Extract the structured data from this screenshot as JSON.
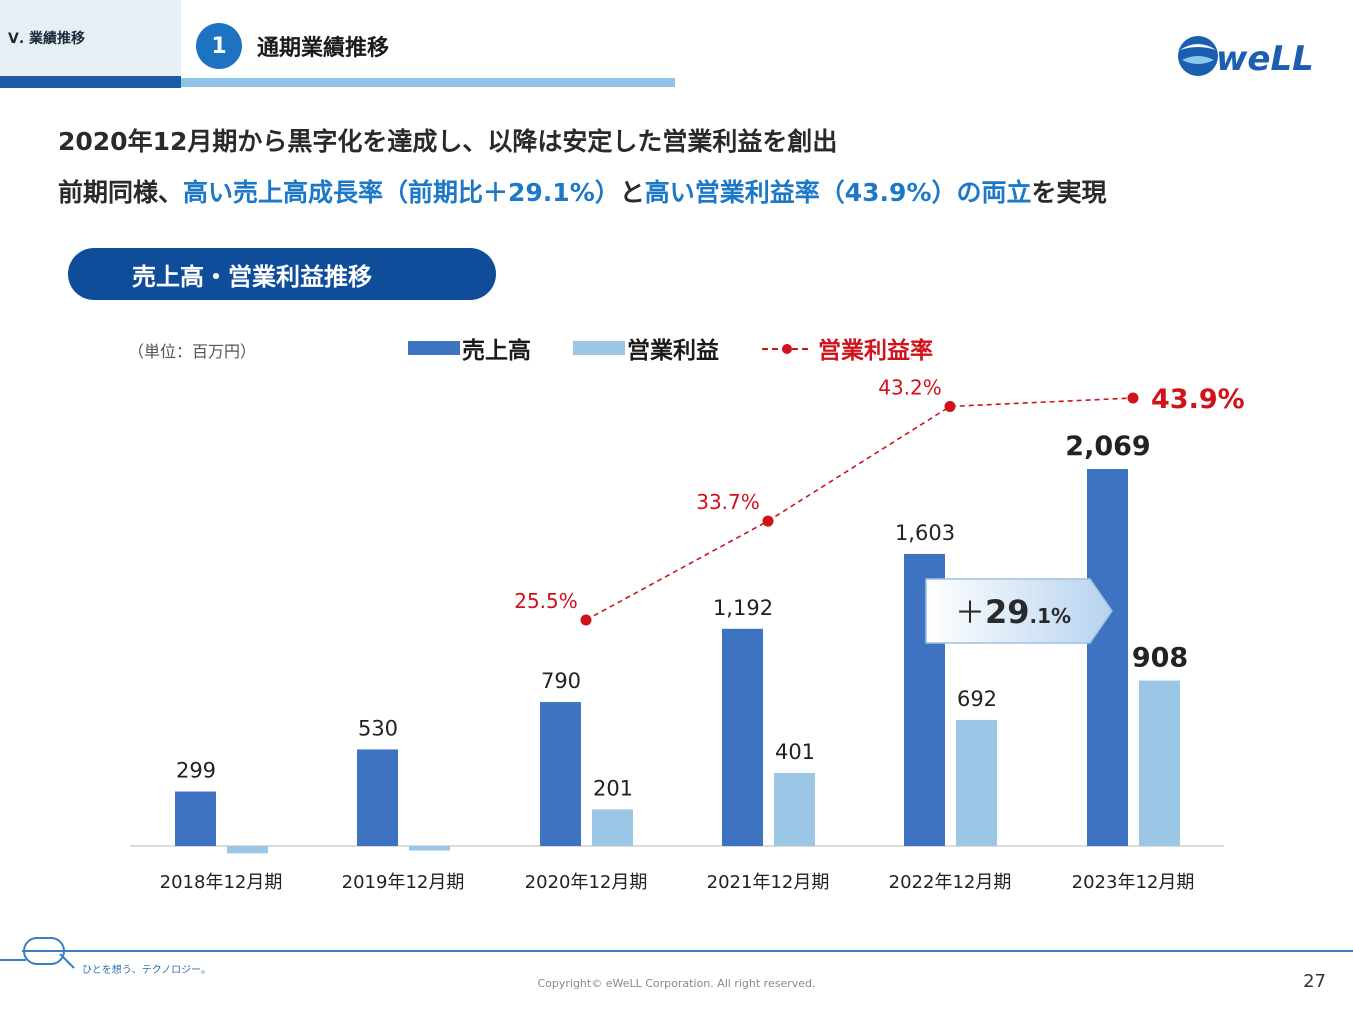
{
  "header": {
    "section_label": "Ⅴ. 業績推移",
    "step_number": "1",
    "title": "通期業績推移",
    "logo_text": "weLL"
  },
  "headline": {
    "line1": "2020年12月期から黒字化を達成し、以降は安定した営業利益を創出",
    "line2_prefix": "前期同様、",
    "line2_highlight1": "高い売上高成長率（前期比＋29.1%）",
    "line2_mid": "と",
    "line2_highlight2": "高い営業利益率（43.9%）の両立",
    "line2_suffix": "を実現"
  },
  "chart_section": {
    "pill_title": "売上高・営業利益推移",
    "unit_label": "（単位：百万円）"
  },
  "colors": {
    "sales_bar": "#3e73c2",
    "profit_bar": "#9cc6e6",
    "margin_line": "#d0121b",
    "navy": "#0f4d9a"
  },
  "chart_data": {
    "type": "bar",
    "categories": [
      "2018年12月期",
      "2019年12月期",
      "2020年12月期",
      "2021年12月期",
      "2022年12月期",
      "2023年12月期"
    ],
    "series": [
      {
        "name": "売上高",
        "type": "bar",
        "values": [
          299,
          530,
          790,
          1192,
          1603,
          2069
        ],
        "labels": [
          "299",
          "530",
          "790",
          "1,192",
          "1,603",
          "2,069"
        ]
      },
      {
        "name": "営業利益",
        "type": "bar",
        "values": [
          -40,
          -25,
          201,
          401,
          692,
          908
        ],
        "labels": [
          "",
          "",
          "201",
          "401",
          "692",
          "908"
        ]
      },
      {
        "name": "営業利益率",
        "type": "line",
        "values": [
          null,
          null,
          25.5,
          33.7,
          43.2,
          43.9
        ],
        "labels": [
          "",
          "",
          "25.5%",
          "33.7%",
          "43.2%",
          "43.9%"
        ]
      }
    ],
    "ylim": [
      -60,
      2150
    ],
    "annotation": {
      "prefix": "＋",
      "big": "29",
      "small": ".1%"
    }
  },
  "footer": {
    "tagline": "ひとを想う、テクノロジー。",
    "copyright": "Copyright© eWeLL Corporation. All right reserved.",
    "page_number": "27"
  }
}
